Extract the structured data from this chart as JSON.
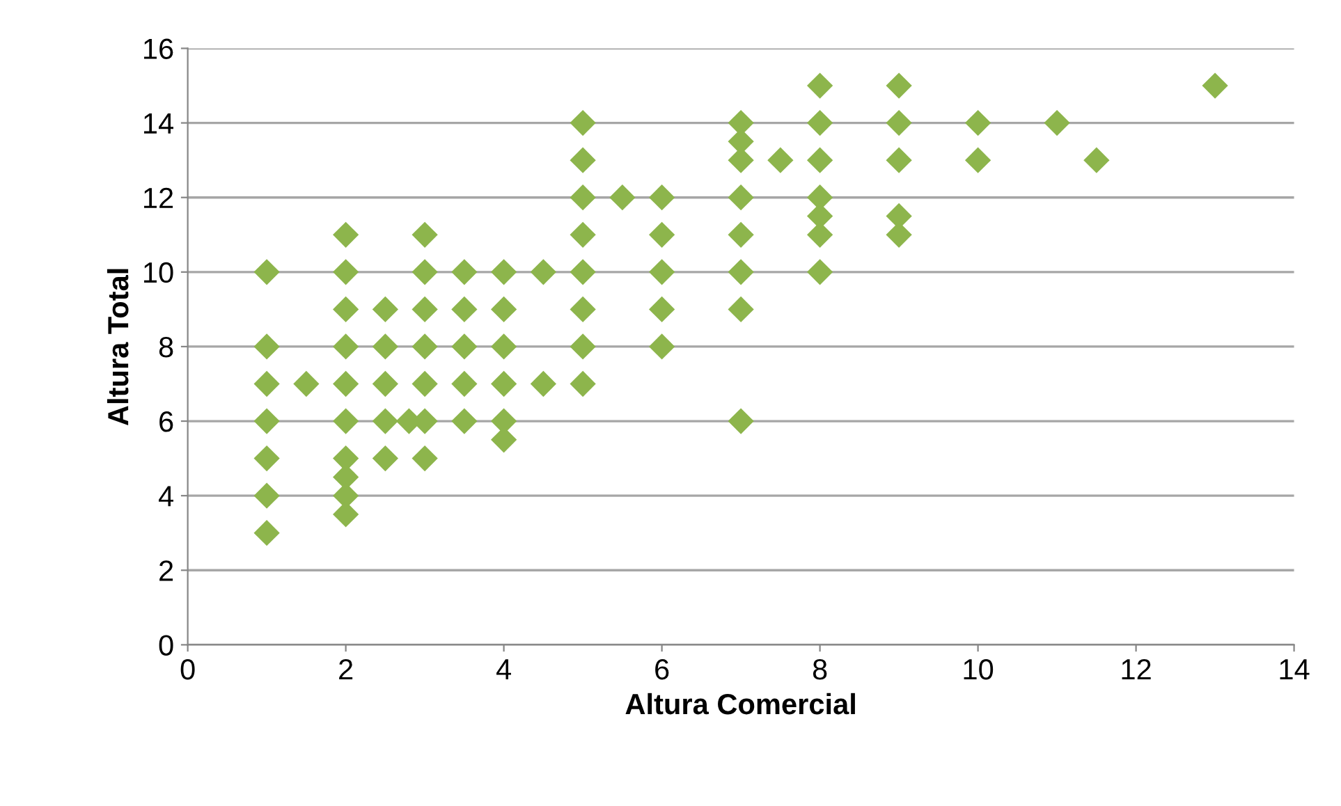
{
  "chart_data": {
    "type": "scatter",
    "xlabel": "Altura Comercial",
    "ylabel": "Altura Total",
    "x": [
      1,
      1,
      1,
      1,
      1,
      1,
      1,
      1.5,
      2,
      2,
      2,
      2,
      2,
      2,
      2,
      2,
      2,
      2,
      2.5,
      2.5,
      2.5,
      2.5,
      2.5,
      2.8,
      3,
      3,
      3,
      3,
      3,
      3,
      3,
      3.5,
      3.5,
      3.5,
      3.5,
      3.5,
      4,
      4,
      4,
      4,
      4,
      4,
      4.5,
      4.5,
      5,
      5,
      5,
      5,
      5,
      5,
      5,
      5,
      5.5,
      6,
      6,
      6,
      6,
      6,
      7,
      7,
      7,
      7,
      7,
      7,
      7,
      7,
      7.5,
      8,
      8,
      8,
      8,
      8,
      8,
      8,
      9,
      9,
      9,
      9,
      9,
      10,
      10,
      11,
      11.5,
      13
    ],
    "series": [
      {
        "color": "#8db54c",
        "values": [
          10,
          8,
          7,
          6,
          5,
          4,
          3,
          7,
          11,
          10,
          9,
          8,
          7,
          6,
          5,
          4.5,
          4,
          3.5,
          9,
          8,
          7,
          6,
          5,
          6,
          11,
          10,
          9,
          8,
          7,
          6,
          5,
          10,
          9,
          8,
          7,
          6,
          10,
          9,
          8,
          7,
          6,
          5.5,
          10,
          7,
          14,
          13,
          12,
          11,
          10,
          9,
          8,
          7,
          12,
          12,
          11,
          10,
          9,
          8,
          14,
          13.5,
          13,
          12,
          11,
          10,
          9,
          6,
          13,
          15,
          14,
          13,
          12,
          11.5,
          11,
          10,
          15,
          14,
          13,
          11.5,
          11,
          14,
          13,
          14,
          13,
          15
        ]
      }
    ],
    "xlim": [
      0,
      14
    ],
    "xticks": [
      0,
      2,
      4,
      6,
      8,
      10,
      12,
      14
    ],
    "ylim": [
      0,
      16
    ],
    "yticks": [
      0,
      2,
      4,
      6,
      8,
      10,
      12,
      14,
      16
    ],
    "grid": "y",
    "marker": "diamond",
    "legend": false
  }
}
